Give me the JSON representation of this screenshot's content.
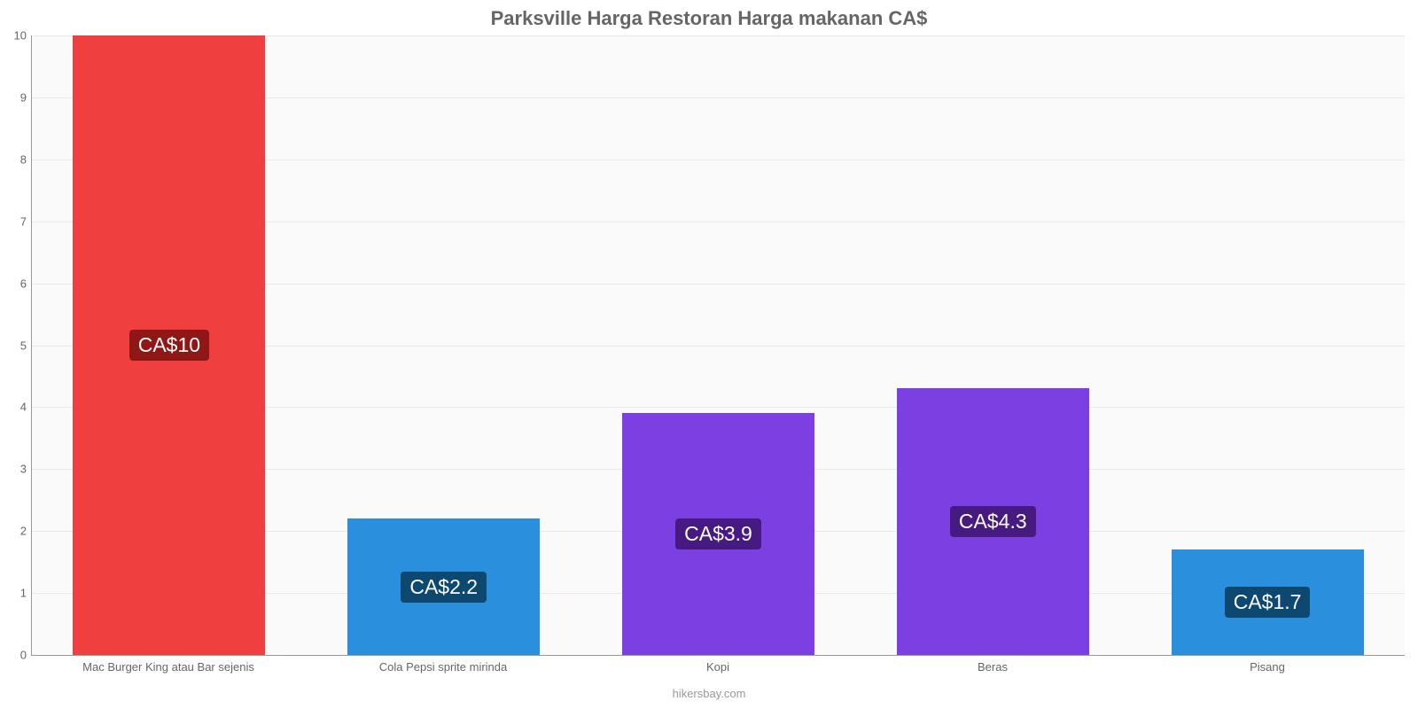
{
  "chart": {
    "type": "bar",
    "title": "Parksville Harga Restoran Harga makanan CA$",
    "title_fontsize": 22,
    "title_color": "#666666",
    "background_color": "#fafafa",
    "grid_color": "#e9e9e9",
    "axis_color": "#999999",
    "tick_label_color": "#666666",
    "tick_label_fontsize": 13,
    "ylim": [
      0,
      10
    ],
    "ytick_step": 1,
    "bar_width_pct": 70,
    "label_text_color": "#ffffff",
    "label_fontsize": 23,
    "label_border_radius": 4,
    "categories": [
      "Mac Burger King atau Bar sejenis",
      "Cola Pepsi sprite mirinda",
      "Kopi",
      "Beras",
      "Pisang"
    ],
    "values": [
      10,
      2.2,
      3.9,
      4.3,
      1.7
    ],
    "value_labels": [
      "CA$10",
      "CA$2.2",
      "CA$3.9",
      "CA$4.3",
      "CA$1.7"
    ],
    "bar_colors": [
      "#ef3f3e",
      "#2a8fdd",
      "#7b3fe2",
      "#7b3fe2",
      "#2a8fdd"
    ],
    "label_bg_colors": [
      "#8f1817",
      "#0d4870",
      "#471a82",
      "#471a82",
      "#0d4870"
    ],
    "footer": "hikersbay.com",
    "footer_color": "#999999",
    "footer_fontsize": 13
  }
}
